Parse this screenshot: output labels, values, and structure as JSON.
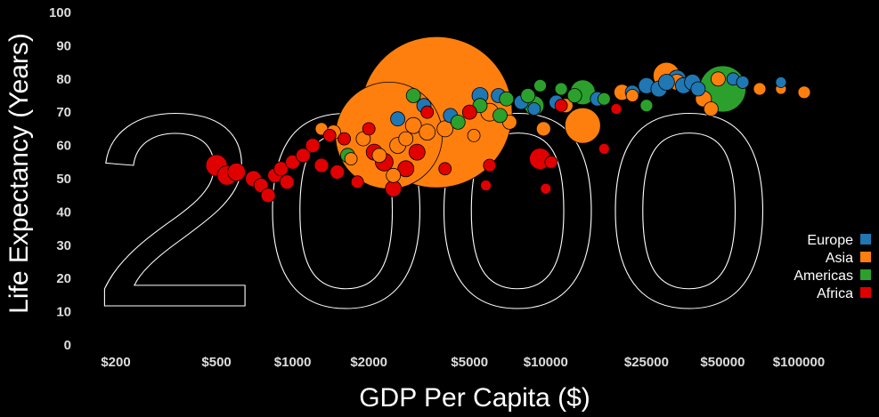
{
  "chart_data": {
    "type": "scatter",
    "title": "",
    "year": "2000",
    "xlabel": "GDP Per Capita ($)",
    "ylabel": "Life Expectancy (Years)",
    "x_scale": "log",
    "xlim": [
      150,
      150000
    ],
    "ylim": [
      0,
      100
    ],
    "x_ticks": [
      {
        "value": 200,
        "label": "$200"
      },
      {
        "value": 500,
        "label": "$500"
      },
      {
        "value": 1000,
        "label": "$1000"
      },
      {
        "value": 2000,
        "label": "$2000"
      },
      {
        "value": 5000,
        "label": "$5000"
      },
      {
        "value": 10000,
        "label": "$10000"
      },
      {
        "value": 25000,
        "label": "$25000"
      },
      {
        "value": 50000,
        "label": "$50000"
      },
      {
        "value": 100000,
        "label": "$100000"
      }
    ],
    "y_ticks": [
      "0",
      "10",
      "20",
      "30",
      "40",
      "50",
      "60",
      "70",
      "80",
      "90",
      "100"
    ],
    "legend": {
      "position": "right",
      "items": [
        {
          "label": "Europe",
          "color": "#1f77b4"
        },
        {
          "label": "Asia",
          "color": "#ff7f0e"
        },
        {
          "label": "Americas",
          "color": "#2ca02c"
        },
        {
          "label": "Africa",
          "color": "#e00000"
        }
      ]
    },
    "series": [
      {
        "name": "Asia",
        "color": "#ff7f0e",
        "points": [
          {
            "x": 3700,
            "y": 70,
            "r": 85
          },
          {
            "x": 2400,
            "y": 63,
            "r": 60
          },
          {
            "x": 14000,
            "y": 66,
            "r": 20
          },
          {
            "x": 1450,
            "y": 64,
            "r": 8
          },
          {
            "x": 1900,
            "y": 62,
            "r": 8
          },
          {
            "x": 1300,
            "y": 65,
            "r": 7
          },
          {
            "x": 2600,
            "y": 60,
            "r": 9
          },
          {
            "x": 3000,
            "y": 66,
            "r": 9
          },
          {
            "x": 3400,
            "y": 64,
            "r": 9
          },
          {
            "x": 4000,
            "y": 65,
            "r": 9
          },
          {
            "x": 5200,
            "y": 63,
            "r": 7
          },
          {
            "x": 6000,
            "y": 70,
            "r": 10
          },
          {
            "x": 7200,
            "y": 67,
            "r": 8
          },
          {
            "x": 9800,
            "y": 65,
            "r": 8
          },
          {
            "x": 12000,
            "y": 72,
            "r": 8
          },
          {
            "x": 20000,
            "y": 76,
            "r": 9
          },
          {
            "x": 22000,
            "y": 75,
            "r": 7
          },
          {
            "x": 30000,
            "y": 81,
            "r": 15
          },
          {
            "x": 33000,
            "y": 79,
            "r": 9
          },
          {
            "x": 42000,
            "y": 74,
            "r": 9
          },
          {
            "x": 45000,
            "y": 71,
            "r": 8
          },
          {
            "x": 48000,
            "y": 80,
            "r": 8
          },
          {
            "x": 70000,
            "y": 77,
            "r": 7
          },
          {
            "x": 85000,
            "y": 77,
            "r": 6
          },
          {
            "x": 105000,
            "y": 76,
            "r": 7
          },
          {
            "x": 1700,
            "y": 56,
            "r": 7
          },
          {
            "x": 2200,
            "y": 57,
            "r": 8
          },
          {
            "x": 2500,
            "y": 51,
            "r": 8
          },
          {
            "x": 2800,
            "y": 62,
            "r": 8
          }
        ]
      },
      {
        "name": "Europe",
        "color": "#1f77b4",
        "points": [
          {
            "x": 2600,
            "y": 68,
            "r": 8
          },
          {
            "x": 3300,
            "y": 72,
            "r": 8
          },
          {
            "x": 4200,
            "y": 69,
            "r": 8
          },
          {
            "x": 5500,
            "y": 75,
            "r": 9
          },
          {
            "x": 6500,
            "y": 75,
            "r": 8
          },
          {
            "x": 8000,
            "y": 73,
            "r": 8
          },
          {
            "x": 9000,
            "y": 71,
            "r": 7
          },
          {
            "x": 11000,
            "y": 73,
            "r": 8
          },
          {
            "x": 16000,
            "y": 74,
            "r": 8
          },
          {
            "x": 22000,
            "y": 76,
            "r": 8
          },
          {
            "x": 25000,
            "y": 78,
            "r": 9
          },
          {
            "x": 28000,
            "y": 77,
            "r": 9
          },
          {
            "x": 30000,
            "y": 79,
            "r": 9
          },
          {
            "x": 33000,
            "y": 80,
            "r": 10
          },
          {
            "x": 35000,
            "y": 78,
            "r": 9
          },
          {
            "x": 38000,
            "y": 79,
            "r": 9
          },
          {
            "x": 40000,
            "y": 77,
            "r": 8
          },
          {
            "x": 55000,
            "y": 80,
            "r": 7
          },
          {
            "x": 60000,
            "y": 79,
            "r": 7
          },
          {
            "x": 85000,
            "y": 79,
            "r": 6
          }
        ]
      },
      {
        "name": "Americas",
        "color": "#2ca02c",
        "points": [
          {
            "x": 50000,
            "y": 77,
            "r": 26
          },
          {
            "x": 14000,
            "y": 76,
            "r": 14
          },
          {
            "x": 9000,
            "y": 72,
            "r": 11
          },
          {
            "x": 1650,
            "y": 57,
            "r": 8
          },
          {
            "x": 3000,
            "y": 75,
            "r": 8
          },
          {
            "x": 4500,
            "y": 67,
            "r": 8
          },
          {
            "x": 5500,
            "y": 72,
            "r": 8
          },
          {
            "x": 7000,
            "y": 74,
            "r": 8
          },
          {
            "x": 8500,
            "y": 75,
            "r": 8
          },
          {
            "x": 9500,
            "y": 78,
            "r": 7
          },
          {
            "x": 11500,
            "y": 77,
            "r": 7
          },
          {
            "x": 13000,
            "y": 75,
            "r": 8
          },
          {
            "x": 17000,
            "y": 74,
            "r": 7
          },
          {
            "x": 25000,
            "y": 72,
            "r": 7
          },
          {
            "x": 6600,
            "y": 69,
            "r": 8
          }
        ]
      },
      {
        "name": "Africa",
        "color": "#e00000",
        "points": [
          {
            "x": 500,
            "y": 54,
            "r": 12
          },
          {
            "x": 550,
            "y": 51,
            "r": 11
          },
          {
            "x": 600,
            "y": 52,
            "r": 10
          },
          {
            "x": 700,
            "y": 50,
            "r": 9
          },
          {
            "x": 750,
            "y": 48,
            "r": 8
          },
          {
            "x": 800,
            "y": 45,
            "r": 8
          },
          {
            "x": 850,
            "y": 51,
            "r": 8
          },
          {
            "x": 900,
            "y": 53,
            "r": 8
          },
          {
            "x": 950,
            "y": 49,
            "r": 8
          },
          {
            "x": 1000,
            "y": 55,
            "r": 8
          },
          {
            "x": 1100,
            "y": 57,
            "r": 8
          },
          {
            "x": 1200,
            "y": 60,
            "r": 8
          },
          {
            "x": 1300,
            "y": 54,
            "r": 8
          },
          {
            "x": 1500,
            "y": 52,
            "r": 8
          },
          {
            "x": 1800,
            "y": 49,
            "r": 7
          },
          {
            "x": 2000,
            "y": 65,
            "r": 7
          },
          {
            "x": 2100,
            "y": 58,
            "r": 9
          },
          {
            "x": 2300,
            "y": 55,
            "r": 10
          },
          {
            "x": 2500,
            "y": 47,
            "r": 9
          },
          {
            "x": 2800,
            "y": 53,
            "r": 9
          },
          {
            "x": 3100,
            "y": 58,
            "r": 9
          },
          {
            "x": 3400,
            "y": 70,
            "r": 7
          },
          {
            "x": 4000,
            "y": 53,
            "r": 7
          },
          {
            "x": 5000,
            "y": 70,
            "r": 8
          },
          {
            "x": 6000,
            "y": 54,
            "r": 7
          },
          {
            "x": 5800,
            "y": 48,
            "r": 6
          },
          {
            "x": 9500,
            "y": 56,
            "r": 12
          },
          {
            "x": 10500,
            "y": 55,
            "r": 7
          },
          {
            "x": 10000,
            "y": 47,
            "r": 6
          },
          {
            "x": 11500,
            "y": 72,
            "r": 7
          },
          {
            "x": 17000,
            "y": 59,
            "r": 6
          },
          {
            "x": 19000,
            "y": 71,
            "r": 6
          },
          {
            "x": 1600,
            "y": 62,
            "r": 7
          },
          {
            "x": 1400,
            "y": 63,
            "r": 7
          }
        ]
      }
    ]
  }
}
